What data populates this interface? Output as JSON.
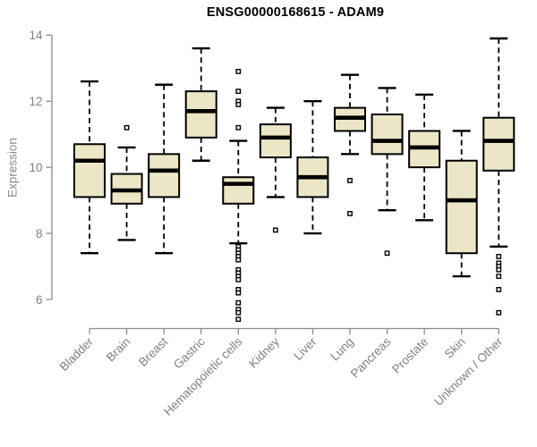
{
  "title": "ENSG00000168615 - ADAM9",
  "colors": {
    "box_fill": "#EDE6C6",
    "box_stroke": "#000000",
    "axis": "#8C8C8C",
    "labels": "#808080",
    "title": "#000000",
    "background": "#FFFFFF"
  },
  "chart_data": {
    "type": "boxplot",
    "title": "ENSG00000168615 - ADAM9",
    "xlabel": "",
    "ylabel": "Expression",
    "ylim": [
      5.3,
      14.2
    ],
    "yticks": [
      6,
      8,
      10,
      12,
      14
    ],
    "grid": false,
    "legend": false,
    "categories": [
      "Bladder",
      "Brain",
      "Breast",
      "Gastric",
      "Hematopoietic cells",
      "Kidney",
      "Liver",
      "Lung",
      "Pancreas",
      "Prostate",
      "Skin",
      "Unknown / Other"
    ],
    "series": [
      {
        "name": "Bladder",
        "whisker_low": 7.4,
        "q1": 9.1,
        "median": 10.2,
        "q3": 10.7,
        "whisker_high": 12.6,
        "outliers": []
      },
      {
        "name": "Brain",
        "whisker_low": 7.8,
        "q1": 8.9,
        "median": 9.3,
        "q3": 9.8,
        "whisker_high": 10.6,
        "outliers": [
          11.2
        ]
      },
      {
        "name": "Breast",
        "whisker_low": 7.4,
        "q1": 9.1,
        "median": 9.9,
        "q3": 10.4,
        "whisker_high": 12.5,
        "outliers": []
      },
      {
        "name": "Gastric",
        "whisker_low": 10.2,
        "q1": 10.9,
        "median": 11.7,
        "q3": 12.3,
        "whisker_high": 13.6,
        "outliers": []
      },
      {
        "name": "Hematopoietic cells",
        "whisker_low": 7.7,
        "q1": 8.9,
        "median": 9.5,
        "q3": 9.7,
        "whisker_high": 10.8,
        "outliers": [
          12.9,
          12.3,
          12.0,
          11.9,
          11.2,
          7.6,
          7.5,
          7.4,
          7.3,
          7.2,
          6.9,
          6.8,
          6.7,
          6.6,
          6.3,
          6.2,
          5.9,
          5.7,
          5.6,
          5.4
        ]
      },
      {
        "name": "Kidney",
        "whisker_low": 9.1,
        "q1": 10.3,
        "median": 10.9,
        "q3": 11.3,
        "whisker_high": 11.8,
        "outliers": [
          8.1
        ]
      },
      {
        "name": "Liver",
        "whisker_low": 8.0,
        "q1": 9.1,
        "median": 9.7,
        "q3": 10.3,
        "whisker_high": 12.0,
        "outliers": []
      },
      {
        "name": "Lung",
        "whisker_low": 10.4,
        "q1": 11.1,
        "median": 11.5,
        "q3": 11.8,
        "whisker_high": 12.8,
        "outliers": [
          9.6,
          8.6
        ]
      },
      {
        "name": "Pancreas",
        "whisker_low": 8.7,
        "q1": 10.4,
        "median": 10.8,
        "q3": 11.6,
        "whisker_high": 12.4,
        "outliers": [
          7.4
        ]
      },
      {
        "name": "Prostate",
        "whisker_low": 8.4,
        "q1": 10.0,
        "median": 10.6,
        "q3": 11.1,
        "whisker_high": 12.2,
        "outliers": []
      },
      {
        "name": "Skin",
        "whisker_low": 6.7,
        "q1": 7.4,
        "median": 9.0,
        "q3": 10.2,
        "whisker_high": 11.1,
        "outliers": []
      },
      {
        "name": "Unknown / Other",
        "whisker_low": 7.6,
        "q1": 9.9,
        "median": 10.8,
        "q3": 11.5,
        "whisker_high": 13.9,
        "outliers": [
          7.3,
          7.1,
          7.0,
          6.9,
          6.7,
          6.3,
          5.6
        ]
      }
    ]
  }
}
